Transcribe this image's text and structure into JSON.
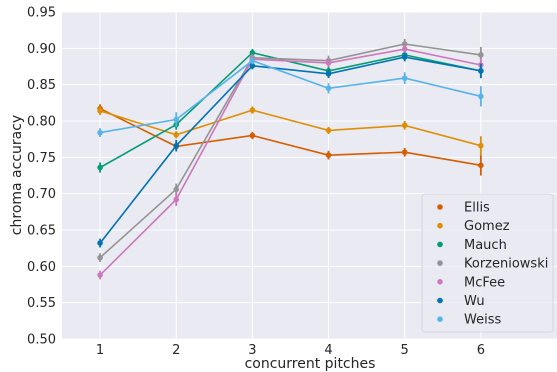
{
  "chart_data": {
    "type": "line",
    "title": "",
    "xlabel": "concurrent pitches",
    "ylabel": "chroma accuracy",
    "x": [
      1,
      2,
      3,
      4,
      5,
      6
    ],
    "x_tick_labels": [
      "1",
      "2",
      "3",
      "4",
      "5",
      "6"
    ],
    "xlim": [
      0.5,
      7.0
    ],
    "ylim": [
      0.5,
      0.95
    ],
    "y_ticks": [
      0.5,
      0.55,
      0.6,
      0.65,
      0.7,
      0.75,
      0.8,
      0.85,
      0.9,
      0.95
    ],
    "y_tick_labels": [
      "0.50",
      "0.55",
      "0.60",
      "0.65",
      "0.70",
      "0.75",
      "0.80",
      "0.85",
      "0.90",
      "0.95"
    ],
    "grid": true,
    "legend_position": "lower-right",
    "series": [
      {
        "name": "Ellis",
        "color": "#d55e00",
        "values": [
          0.817,
          0.765,
          0.78,
          0.753,
          0.757,
          0.739
        ],
        "errors": [
          0.006,
          0.005,
          0.005,
          0.006,
          0.006,
          0.014
        ]
      },
      {
        "name": "Gomez",
        "color": "#de8f05",
        "values": [
          0.814,
          0.781,
          0.815,
          0.787,
          0.794,
          0.766
        ],
        "errors": [
          0.006,
          0.005,
          0.005,
          0.005,
          0.006,
          0.013
        ]
      },
      {
        "name": "Mauch",
        "color": "#029e73",
        "values": [
          0.736,
          0.795,
          0.894,
          0.869,
          0.891,
          0.869
        ],
        "errors": [
          0.007,
          0.007,
          0.005,
          0.006,
          0.006,
          0.01
        ]
      },
      {
        "name": "Korzeniowski",
        "color": "#949494",
        "values": [
          0.612,
          0.706,
          0.887,
          0.883,
          0.906,
          0.891
        ],
        "errors": [
          0.006,
          0.008,
          0.005,
          0.007,
          0.007,
          0.011
        ]
      },
      {
        "name": "McFee",
        "color": "#cc78bc",
        "values": [
          0.588,
          0.692,
          0.885,
          0.88,
          0.899,
          0.877
        ],
        "errors": [
          0.006,
          0.009,
          0.005,
          0.006,
          0.006,
          0.01
        ]
      },
      {
        "name": "Wu",
        "color": "#0173b2",
        "values": [
          0.632,
          0.766,
          0.876,
          0.865,
          0.888,
          0.869
        ],
        "errors": [
          0.006,
          0.008,
          0.005,
          0.006,
          0.006,
          0.01
        ]
      },
      {
        "name": "Weiss",
        "color": "#56b4e9",
        "values": [
          0.784,
          0.802,
          0.883,
          0.845,
          0.859,
          0.834
        ],
        "errors": [
          0.006,
          0.01,
          0.005,
          0.007,
          0.008,
          0.014
        ]
      }
    ]
  }
}
